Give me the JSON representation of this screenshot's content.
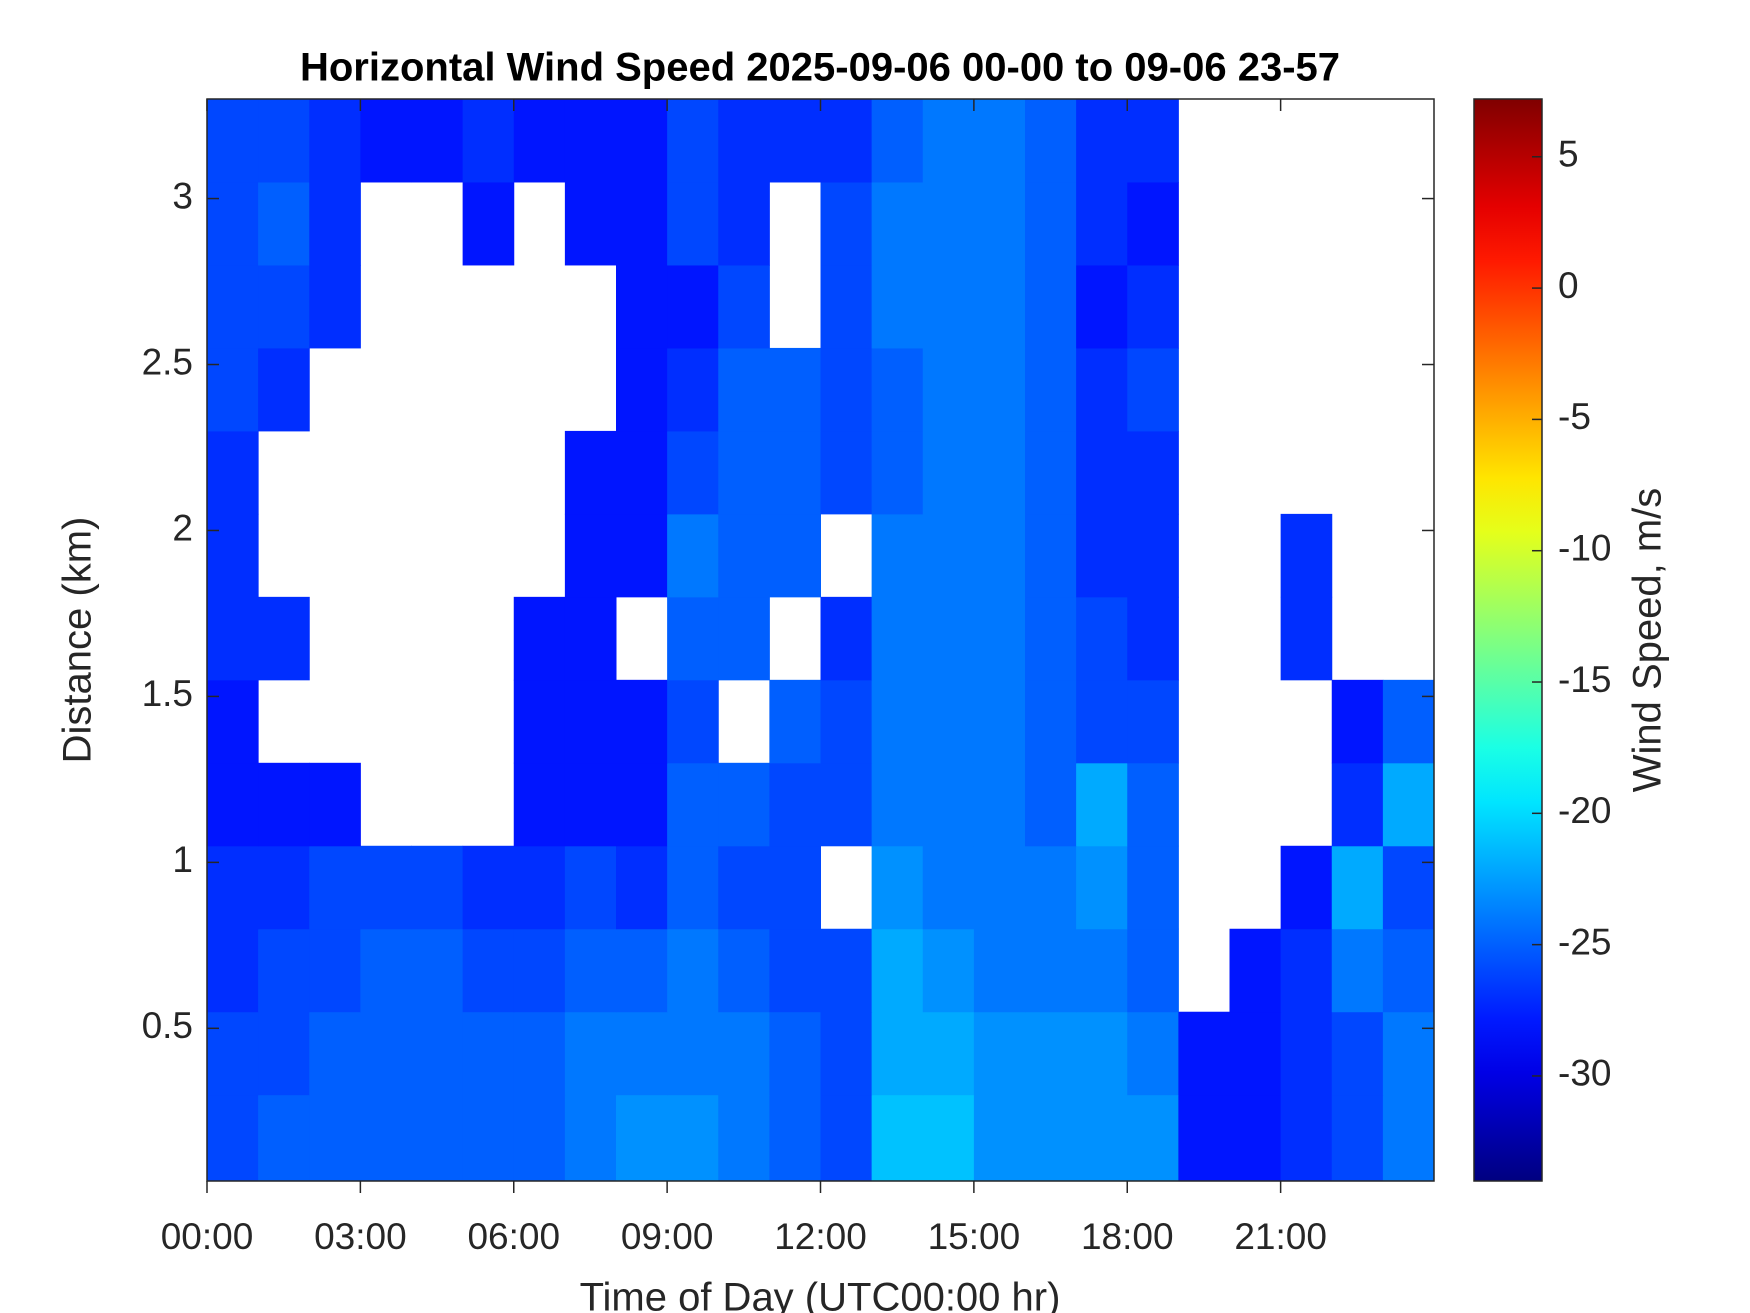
{
  "chart_data": {
    "type": "heatmap",
    "title": "Horizontal Wind Speed 2025-09-06 00-00 to 09-06 23-57",
    "x_label": "Time of Day (UTC00:00 hr)",
    "y_label": "Distance (km)",
    "colorbar_label": "Wind Speed, m/s",
    "colormap": "jet",
    "xbins": [
      0,
      1,
      2,
      3,
      4,
      5,
      6,
      7,
      8,
      9,
      10,
      11,
      12,
      13,
      14,
      15,
      16,
      17,
      18,
      19,
      20,
      21,
      22,
      23,
      24
    ],
    "ybins": [
      0.04,
      0.3,
      0.55,
      0.8,
      1.05,
      1.3,
      1.55,
      1.8,
      2.05,
      2.3,
      2.55,
      2.8,
      3.05,
      3.3
    ],
    "xlim": [
      0,
      24
    ],
    "ylim": [
      0.04,
      3.3
    ],
    "clim": [
      -34,
      7.2
    ],
    "xticks": [
      {
        "value": 0,
        "label": "00:00"
      },
      {
        "value": 3,
        "label": "03:00"
      },
      {
        "value": 6,
        "label": "06:00"
      },
      {
        "value": 9,
        "label": "09:00"
      },
      {
        "value": 12,
        "label": "12:00"
      },
      {
        "value": 15,
        "label": "15:00"
      },
      {
        "value": 18,
        "label": "18:00"
      },
      {
        "value": 21,
        "label": "21:00"
      }
    ],
    "yticks": [
      0.5,
      1,
      1.5,
      2,
      2.5,
      3
    ],
    "cticks": [
      -30,
      -25,
      -20,
      -15,
      -10,
      -5,
      0,
      5
    ],
    "z": [
      [
        -26,
        -25,
        -25,
        -25,
        -25,
        -25,
        -25,
        -24,
        -23,
        -23,
        -24,
        -25,
        -26,
        -21,
        -21,
        -23,
        -23,
        -23,
        -23,
        -28,
        -28,
        -27,
        -26,
        -24
      ],
      [
        -26,
        -26,
        -25,
        -25,
        -25,
        -25,
        -25,
        -24,
        -24,
        -24,
        -24,
        -25,
        -26,
        -22,
        -22,
        -23,
        -23,
        -23,
        -24,
        -28,
        -28,
        -27,
        -26,
        -24
      ],
      [
        -27,
        -26,
        -26,
        -25,
        -25,
        -26,
        -26,
        -25,
        -25,
        -24,
        -25,
        -26,
        -26,
        -22,
        -23,
        -24,
        -24,
        -24,
        -25,
        null,
        -28,
        -27,
        -24,
        -25
      ],
      [
        -27,
        -27,
        -26,
        -26,
        -26,
        -27,
        -27,
        -26,
        -27,
        -25,
        -26,
        -26,
        null,
        -23,
        -24,
        -24,
        -24,
        -23,
        -25,
        null,
        null,
        -28,
        -22,
        -26
      ],
      [
        -28,
        -28,
        -28,
        null,
        null,
        null,
        -28,
        -28,
        -28,
        -25,
        -25,
        -26,
        -26,
        -24,
        -24,
        -24,
        -25,
        -22,
        -25,
        null,
        null,
        null,
        -27,
        -22
      ],
      [
        -28,
        null,
        null,
        null,
        null,
        null,
        -28,
        -28,
        -28,
        -26,
        null,
        -25,
        -26,
        -24,
        -24,
        -24,
        -25,
        -26,
        -26,
        null,
        null,
        null,
        -28,
        -25
      ],
      [
        -27,
        -27,
        null,
        null,
        null,
        null,
        -28,
        -28,
        null,
        -25,
        -25,
        null,
        -27,
        -24,
        -24,
        -24,
        -25,
        -26,
        -27,
        null,
        null,
        -27,
        null,
        null
      ],
      [
        -27,
        null,
        null,
        null,
        null,
        null,
        null,
        -28,
        -28,
        -24,
        -25,
        -25,
        null,
        -24,
        -24,
        -24,
        -25,
        -27,
        -27,
        null,
        null,
        -27,
        null,
        null
      ],
      [
        -27,
        null,
        null,
        null,
        null,
        null,
        null,
        -28,
        -28,
        -26,
        -25,
        -25,
        -26,
        -25,
        -24,
        -24,
        -25,
        -27,
        -27,
        null,
        null,
        null,
        null,
        null
      ],
      [
        -26,
        -27,
        null,
        null,
        null,
        null,
        null,
        null,
        -28,
        -27,
        -25,
        -25,
        -26,
        -25,
        -24,
        -24,
        -25,
        -27,
        -26,
        null,
        null,
        null,
        null,
        null
      ],
      [
        -26,
        -26,
        -27,
        null,
        null,
        null,
        null,
        null,
        -28,
        -28,
        -26,
        null,
        -26,
        -24,
        -24,
        -24,
        -25,
        -28,
        -27,
        null,
        null,
        null,
        null,
        null
      ],
      [
        -26,
        -25,
        -27,
        null,
        null,
        -28,
        null,
        -28,
        -28,
        -26,
        -27,
        null,
        -26,
        -24,
        -24,
        -24,
        -25,
        -27,
        -28,
        null,
        null,
        null,
        null,
        null
      ],
      [
        -26,
        -26,
        -27,
        -28,
        -28,
        -27,
        -28,
        -28,
        -28,
        -26,
        -27,
        -27,
        -27,
        -25,
        -24,
        -24,
        -25,
        -27,
        -27,
        null,
        null,
        null,
        null,
        null
      ]
    ]
  }
}
